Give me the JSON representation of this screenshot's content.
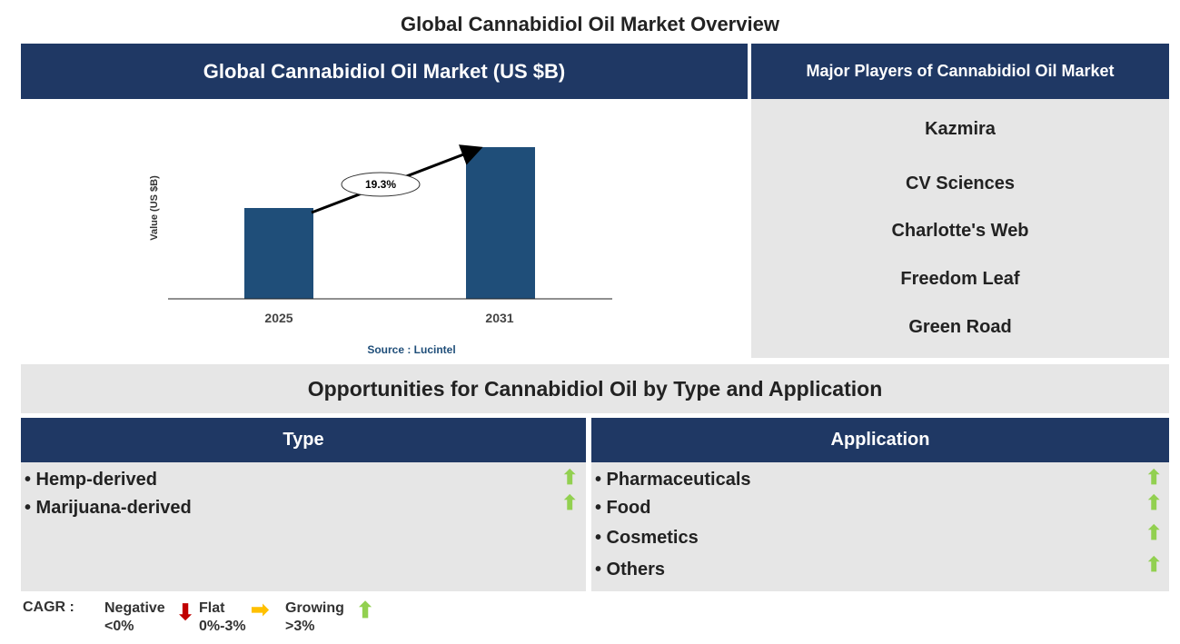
{
  "title": "Global Cannabidiol Oil Market Overview",
  "chart_panel": {
    "header": "Global Cannabidiol Oil Market (US $B)"
  },
  "chart_data": {
    "type": "bar",
    "title": "Global Cannabidiol Oil Market (US $B)",
    "categories": [
      "2025",
      "2031"
    ],
    "values": [
      1.0,
      1.67
    ],
    "value_note_relative": true,
    "ylabel": "Value (US $B)",
    "xlabel": "",
    "annotation": "19.3%",
    "source": "Source : Lucintel",
    "bar_color": "#1f4e79",
    "grid": false
  },
  "players": {
    "header": "Major Players of Cannabidiol Oil Market",
    "items": [
      "Kazmira",
      "CV Sciences",
      "Charlotte's Web",
      "Freedom Leaf",
      "Green Road"
    ]
  },
  "opportunities": {
    "title": "Opportunities for Cannabidiol Oil by Type and Application",
    "type": {
      "header": "Type",
      "items": [
        {
          "label": "• Hemp-derived",
          "trend": "growing"
        },
        {
          "label": "• Marijuana-derived",
          "trend": "growing"
        }
      ]
    },
    "application": {
      "header": "Application",
      "items": [
        {
          "label": "• Pharmaceuticals",
          "trend": "growing"
        },
        {
          "label": "• Food",
          "trend": "growing"
        },
        {
          "label": "• Cosmetics",
          "trend": "growing"
        },
        {
          "label": "• Others",
          "trend": "growing"
        }
      ]
    }
  },
  "legend": {
    "label": "CAGR :",
    "negative": "Negative",
    "negative_range": "<0%",
    "flat": "Flat",
    "flat_range": "0%-3%",
    "growing": "Growing",
    "growing_range": ">3%",
    "colors": {
      "negative": "#c00000",
      "flat": "#ffc000",
      "growing": "#92d050"
    }
  }
}
